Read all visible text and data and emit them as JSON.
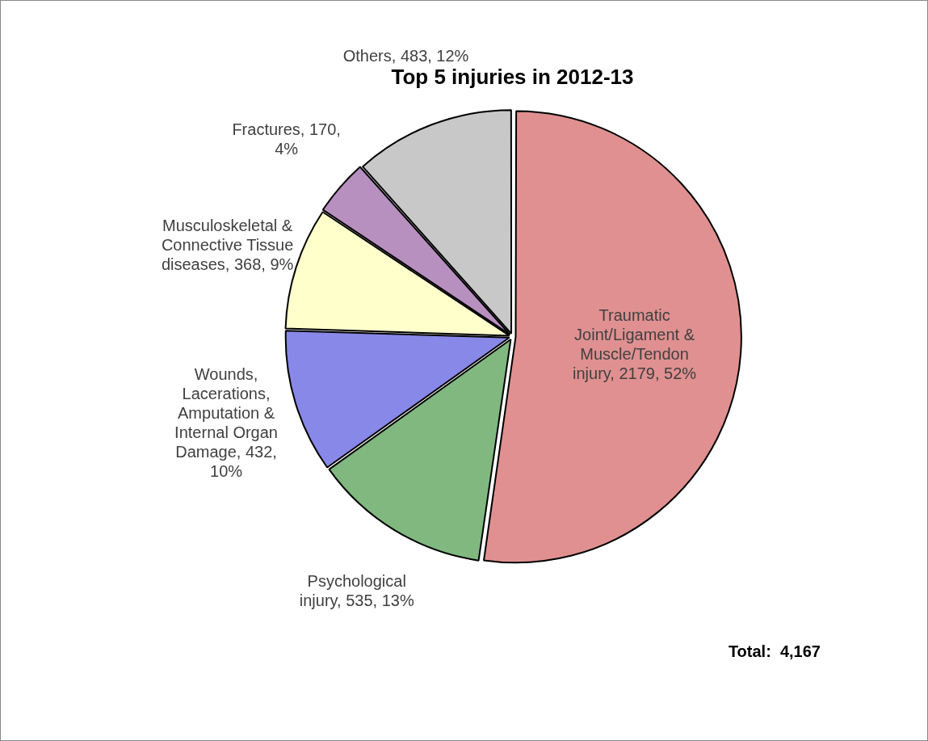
{
  "chart_data": {
    "type": "pie",
    "title": "Top 5 injuries in 2012-13",
    "categories": [
      "Traumatic Joint/Ligament & Muscle/Tendon injury",
      "Psychological injury",
      "Wounds, Lacerations, Amputation & Internal Organ Damage",
      "Musculoskeletal & Connective Tissue diseases",
      "Fractures",
      "Others"
    ],
    "values": [
      2179,
      535,
      432,
      368,
      170,
      483
    ],
    "value_labels": [
      "2179, 52%",
      "535, 13%",
      "432, 10%",
      "368, 9%",
      "170, 4%",
      "483, 12%"
    ],
    "colors": [
      "#e09090",
      "#80b880",
      "#8888e8",
      "#ffffcc",
      "#b890c0",
      "#c8c8c8"
    ],
    "legend": false,
    "annotations": [
      "Total:  4,167"
    ]
  }
}
